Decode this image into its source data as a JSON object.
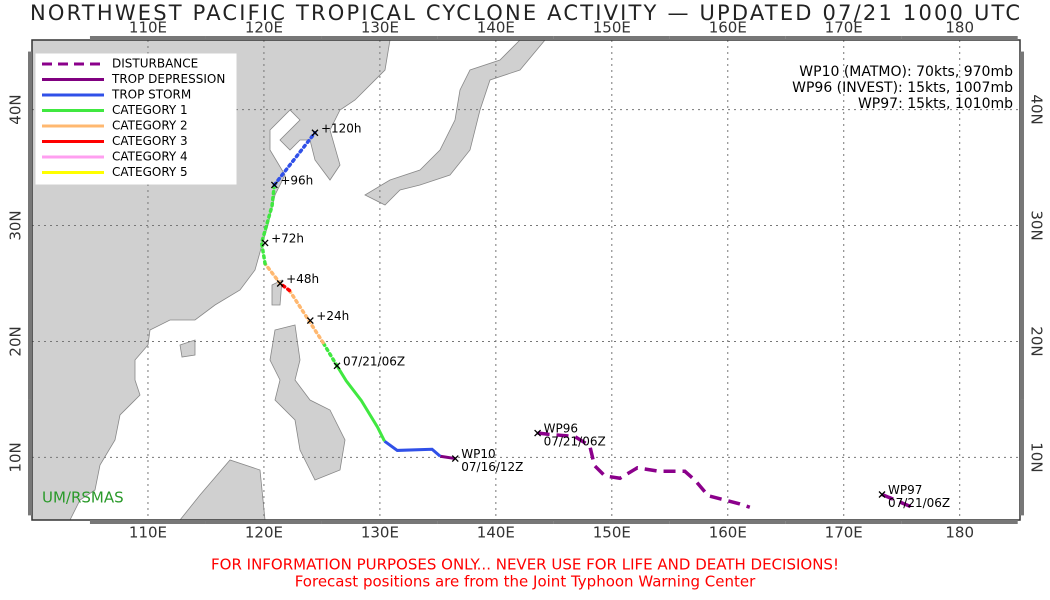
{
  "title": "NORTHWEST PACIFIC TROPICAL CYCLONE ACTIVITY — UPDATED 07/21 1000 UTC",
  "map": {
    "lonlim": [
      100,
      185.2
    ],
    "latlim": [
      4.6,
      46
    ],
    "lon_ticks": [
      {
        "value": 110,
        "label": "110E"
      },
      {
        "value": 120,
        "label": "120E"
      },
      {
        "value": 130,
        "label": "130E"
      },
      {
        "value": 140,
        "label": "140E"
      },
      {
        "value": 150,
        "label": "150E"
      },
      {
        "value": 160,
        "label": "160E"
      },
      {
        "value": 170,
        "label": "170E"
      },
      180
    ],
    "lat_ticks": [
      {
        "value": 10,
        "label": "10N"
      },
      {
        "value": 20,
        "label": "20N"
      },
      {
        "value": 30,
        "label": "30N"
      },
      {
        "value": 40,
        "label": "40N"
      }
    ]
  },
  "legend": [
    {
      "name": "DISTURBANCE",
      "color": "#8b008b",
      "style": "dashed"
    },
    {
      "name": "TROP DEPRESSION",
      "color": "#800080",
      "style": "solid"
    },
    {
      "name": "TROP STORM",
      "color": "#3050e8",
      "style": "solid"
    },
    {
      "name": "CATEGORY 1",
      "color": "#40e840",
      "style": "solid"
    },
    {
      "name": "CATEGORY 2",
      "color": "#ffb870",
      "style": "solid"
    },
    {
      "name": "CATEGORY 3",
      "color": "#ff0000",
      "style": "solid"
    },
    {
      "name": "CATEGORY 4",
      "color": "#ff9ff0",
      "style": "solid"
    },
    {
      "name": "CATEGORY 5",
      "color": "#ffff00",
      "style": "solid"
    }
  ],
  "storm_info": [
    "WP10 (MATMO): 70kts, 970mb",
    "WP96 (INVEST): 15kts, 1007mb",
    "WP97: 15kts, 1010mb"
  ],
  "tracks": [
    {
      "segments": [
        {
          "color": "#800080",
          "style": "solid",
          "lon": [
            136.5,
            135.2
          ],
          "lat": [
            9.9,
            10.1
          ]
        },
        {
          "color": "#3050e8",
          "style": "solid",
          "lon": [
            135.2,
            134.5,
            131.5,
            130.4
          ],
          "lat": [
            10.1,
            10.7,
            10.6,
            11.4
          ]
        },
        {
          "color": "#40e840",
          "style": "solid",
          "lon": [
            130.4,
            129.8,
            128.4,
            127.1,
            126.3
          ],
          "lat": [
            11.4,
            12.6,
            14.9,
            16.6,
            17.9
          ]
        },
        {
          "color": "#40e840",
          "style": "dotted",
          "lon": [
            126.3,
            125.1
          ],
          "lat": [
            17.9,
            19.9
          ]
        },
        {
          "color": "#ffb870",
          "style": "dotted",
          "lon": [
            125.1,
            122.2
          ],
          "lat": [
            19.9,
            24.4
          ]
        },
        {
          "color": "#ff0000",
          "style": "dotted",
          "lon": [
            122.2,
            121.4
          ],
          "lat": [
            24.4,
            25.0
          ]
        },
        {
          "color": "#ffb870",
          "style": "dotted",
          "lon": [
            121.4,
            120.1
          ],
          "lat": [
            25.0,
            26.7
          ]
        },
        {
          "color": "#40e840",
          "style": "dotted",
          "lon": [
            120.1,
            119.8,
            120.7,
            120.9
          ],
          "lat": [
            26.7,
            28.5,
            31.7,
            33.5
          ]
        },
        {
          "color": "#3050e8",
          "style": "dotted",
          "lon": [
            120.9,
            124.4
          ],
          "lat": [
            33.5,
            38.0
          ]
        }
      ],
      "labels": [
        {
          "lines": [
            "WP10",
            "07/16/12Z"
          ],
          "lon": 136.5,
          "lat": 9.9
        },
        {
          "lines": [
            "07/21/06Z"
          ],
          "lon": 126.3,
          "lat": 17.9
        },
        {
          "lines": [
            "+24h"
          ],
          "lon": 124.0,
          "lat": 21.8
        },
        {
          "lines": [
            "+48h"
          ],
          "lon": 121.4,
          "lat": 25.0
        },
        {
          "lines": [
            "+72h"
          ],
          "lon": 120.1,
          "lat": 28.5
        },
        {
          "lines": [
            "+96h"
          ],
          "lon": 120.9,
          "lat": 33.5
        },
        {
          "lines": [
            "+120h"
          ],
          "lon": 124.4,
          "lat": 38.0
        }
      ]
    },
    {
      "segments": [
        {
          "color": "#8b008b",
          "style": "dashed",
          "lon": [
            143.6,
            144.5,
            146.8,
            148.1,
            148.5,
            149.4,
            150.7,
            152.2,
            154.1,
            156.3,
            157.2,
            158.3,
            161.0,
            161.9
          ],
          "lat": [
            12.1,
            12.0,
            11.8,
            11.0,
            9.3,
            8.4,
            8.2,
            9.1,
            8.8,
            8.8,
            8.0,
            6.7,
            6.0,
            5.7
          ]
        }
      ],
      "labels": [
        {
          "lines": [
            "WP96",
            "07/21/06Z"
          ],
          "lon": 143.6,
          "lat": 12.1
        }
      ]
    },
    {
      "segments": [
        {
          "color": "#8b008b",
          "style": "dashed",
          "lon": [
            173.3,
            175.9
          ],
          "lat": [
            6.8,
            5.7
          ]
        }
      ],
      "labels": [
        {
          "lines": [
            "WP97",
            "07/21/06Z"
          ],
          "lon": 173.3,
          "lat": 6.8
        }
      ]
    }
  ],
  "watermark": "UM/RSMAS",
  "footer": [
    "FOR INFORMATION PURPOSES ONLY... NEVER USE FOR LIFE AND DEATH DECISIONS!",
    "Forecast positions are from the Joint Typhoon Warning Center"
  ]
}
